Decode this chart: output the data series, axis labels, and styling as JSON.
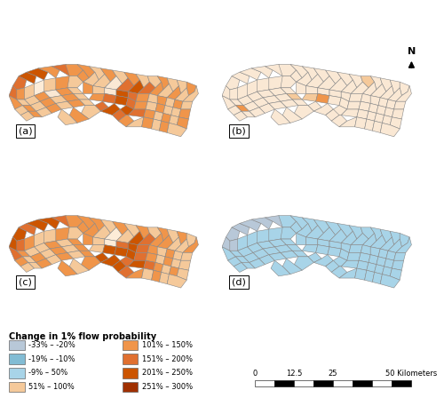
{
  "background_color": "#ffffff",
  "legend_title": "Change in 1% flow probability",
  "colors": {
    "dark_orange": "#cc5500",
    "medium_orange": "#e07030",
    "light_orange": "#f0954a",
    "pale_orange": "#f5c99a",
    "very_pale": "#fae8d4",
    "cream": "#fdecd8",
    "light_blue": "#a8d4e8",
    "medium_blue": "#82bcd4",
    "pale_blue": "#b8c8d8",
    "outline": "#888888",
    "background": "#ffffff"
  },
  "legend_left": [
    [
      "-33% – -20%",
      "#b8c8d8"
    ],
    [
      "-19% – -10%",
      "#82bcd4"
    ],
    [
      "-9% – 50%",
      "#a8d4e8"
    ],
    [
      "51% – 100%",
      "#f5c99a"
    ]
  ],
  "legend_right": [
    [
      "101% – 150%",
      "#f0954a"
    ],
    [
      "151% – 200%",
      "#e07030"
    ],
    [
      "201% – 250%",
      "#cc5500"
    ],
    [
      "251% – 300%",
      "#a03000"
    ]
  ]
}
